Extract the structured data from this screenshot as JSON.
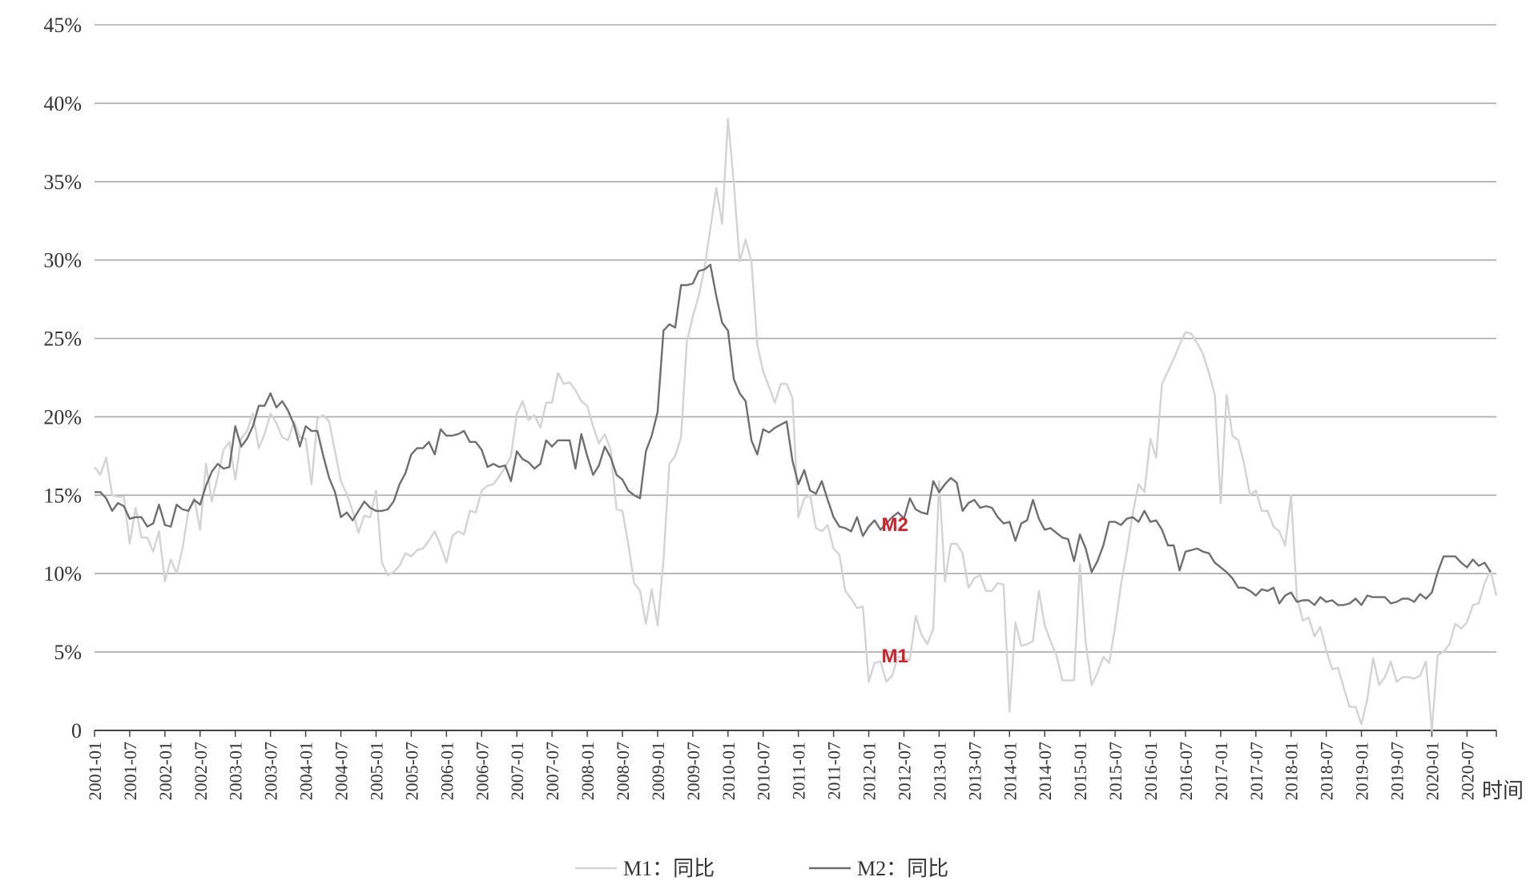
{
  "chart_data": {
    "type": "line",
    "title": "",
    "xlabel": "时间",
    "ylabel": "",
    "ylim": [
      0,
      45
    ],
    "y_ticks": [
      "0",
      "5%",
      "10%",
      "15%",
      "20%",
      "25%",
      "30%",
      "35%",
      "40%",
      "45%"
    ],
    "y_tick_values": [
      0,
      5,
      10,
      15,
      20,
      25,
      30,
      35,
      40,
      45
    ],
    "x_tick_labels": [
      "2001-01",
      "2001-07",
      "2002-01",
      "2002-07",
      "2003-01",
      "2003-07",
      "2004-01",
      "2004-07",
      "2005-01",
      "2005-07",
      "2006-01",
      "2006-07",
      "2007-01",
      "2007-07",
      "2008-01",
      "2008-07",
      "2009-01",
      "2009-07",
      "2010-01",
      "2010-07",
      "2011-01",
      "2011-07",
      "2012-01",
      "2012-07",
      "2013-01",
      "2013-07",
      "2014-01",
      "2014-07",
      "2015-01",
      "2015-07",
      "2016-01",
      "2016-07",
      "2017-01",
      "2017-07",
      "2018-01",
      "2018-07",
      "2019-01",
      "2019-07",
      "2020-01",
      "2020-07"
    ],
    "x_start": "2001-01",
    "x_end": "2020-12",
    "grid": true,
    "legend_position": "bottom",
    "annotations": [
      {
        "text": "M2",
        "series": "M2：同比",
        "at": "2012-06",
        "color": "#d2202a"
      },
      {
        "text": "M1",
        "series": "M1：同比",
        "at": "2012-06",
        "color": "#d2202a"
      }
    ],
    "series": [
      {
        "name": "M1：同比",
        "color": "#d3d3d3",
        "values": [
          16.8,
          16.3,
          17.4,
          15.0,
          14.9,
          14.9,
          11.9,
          14.2,
          12.3,
          12.3,
          11.4,
          12.7,
          9.5,
          10.9,
          10.0,
          11.6,
          14.0,
          14.8,
          12.8,
          17.0,
          14.6,
          16.2,
          17.9,
          18.4,
          16.0,
          18.6,
          19.1,
          20.2,
          18.0,
          18.9,
          20.2,
          19.6,
          18.7,
          18.5,
          19.7,
          18.7,
          18.6,
          15.7,
          19.9,
          20.1,
          19.7,
          17.8,
          15.9,
          15.1,
          14.0,
          12.6,
          13.7,
          13.6,
          15.3,
          10.7,
          9.9,
          10.1,
          10.5,
          11.3,
          11.1,
          11.5,
          11.6,
          12.1,
          12.7,
          11.8,
          10.7,
          12.4,
          12.7,
          12.5,
          14.0,
          13.9,
          15.3,
          15.6,
          15.7,
          16.2,
          16.8,
          17.5,
          20.2,
          21.0,
          19.8,
          20.1,
          19.3,
          20.9,
          20.9,
          22.8,
          22.1,
          22.2,
          21.7,
          21.0,
          20.7,
          19.4,
          18.3,
          18.9,
          17.9,
          14.1,
          14.0,
          11.9,
          9.4,
          8.9,
          6.8,
          9.0,
          6.7,
          10.9,
          17.0,
          17.5,
          18.7,
          24.8,
          26.4,
          27.7,
          29.5,
          32.0,
          34.6,
          32.3,
          39.0,
          34.9,
          29.9,
          31.3,
          29.9,
          24.6,
          22.9,
          21.9,
          20.9,
          22.1,
          22.1,
          21.2,
          13.6,
          14.8,
          15.0,
          12.9,
          12.7,
          13.1,
          11.6,
          11.2,
          8.9,
          8.4,
          7.8,
          7.9,
          3.1,
          4.3,
          4.4,
          3.1,
          3.5,
          4.7,
          4.6,
          4.5,
          7.3,
          6.1,
          5.5,
          6.5,
          15.9,
          9.5,
          11.9,
          11.9,
          11.3,
          9.1,
          9.7,
          9.9,
          8.9,
          8.9,
          9.4,
          9.3,
          1.2,
          6.9,
          5.4,
          5.5,
          5.7,
          8.9,
          6.7,
          5.7,
          4.8,
          3.2,
          3.2,
          3.2,
          10.6,
          5.6,
          2.9,
          3.7,
          4.7,
          4.3,
          6.6,
          9.3,
          11.4,
          13.8,
          15.7,
          15.2,
          18.6,
          17.4,
          22.1,
          22.9,
          23.7,
          24.6,
          25.4,
          25.3,
          24.7,
          24.0,
          22.8,
          21.4,
          14.5,
          21.4,
          18.8,
          18.5,
          17.0,
          15.0,
          15.3,
          14.0,
          14.0,
          13.0,
          12.7,
          11.8,
          15.0,
          8.5,
          7.0,
          7.2,
          6.0,
          6.6,
          5.1,
          3.9,
          4.0,
          2.7,
          1.5,
          1.5,
          0.4,
          2.0,
          4.6,
          2.9,
          3.4,
          4.4,
          3.1,
          3.4,
          3.4,
          3.3,
          3.5,
          4.4,
          0.0,
          4.8,
          5.0,
          5.5,
          6.8,
          6.5,
          6.9,
          8.0,
          8.1,
          9.4,
          10.2,
          8.6
        ]
      },
      {
        "name": "M2：同比",
        "color": "#6e6e6e",
        "values": [
          15.2,
          15.2,
          14.8,
          14.0,
          14.5,
          14.3,
          13.5,
          13.6,
          13.6,
          13.0,
          13.2,
          14.4,
          13.1,
          13.0,
          14.4,
          14.1,
          14.0,
          14.7,
          14.4,
          15.6,
          16.5,
          17.0,
          16.7,
          16.8,
          19.4,
          18.1,
          18.6,
          19.4,
          20.7,
          20.7,
          21.5,
          20.6,
          21.0,
          20.4,
          19.5,
          18.1,
          19.4,
          19.1,
          19.1,
          17.5,
          16.1,
          15.2,
          13.6,
          13.9,
          13.4,
          14.0,
          14.6,
          14.2,
          14.0,
          14.0,
          14.1,
          14.6,
          15.7,
          16.4,
          17.6,
          18.0,
          18.0,
          18.4,
          17.6,
          19.2,
          18.8,
          18.8,
          18.9,
          19.1,
          18.4,
          18.4,
          17.9,
          16.8,
          17.0,
          16.8,
          16.9,
          15.9,
          17.8,
          17.3,
          17.1,
          16.7,
          17.0,
          18.5,
          18.1,
          18.5,
          18.5,
          18.5,
          16.7,
          18.9,
          17.5,
          16.3,
          16.9,
          18.1,
          17.4,
          16.3,
          16.0,
          15.3,
          15.0,
          14.8,
          17.8,
          18.8,
          20.3,
          25.5,
          25.9,
          25.7,
          28.4,
          28.4,
          28.5,
          29.3,
          29.4,
          29.7,
          27.7,
          26.0,
          25.5,
          22.4,
          21.5,
          21.0,
          18.5,
          17.6,
          19.2,
          19.0,
          19.3,
          19.5,
          19.7,
          17.2,
          15.7,
          16.6,
          15.3,
          15.1,
          15.9,
          14.7,
          13.6,
          13.0,
          12.9,
          12.7,
          13.6,
          12.4,
          13.0,
          13.4,
          12.8,
          13.2,
          13.6,
          13.9,
          13.5,
          14.8,
          14.1,
          13.9,
          13.8,
          15.9,
          15.2,
          15.7,
          16.1,
          15.8,
          14.0,
          14.5,
          14.7,
          14.2,
          14.3,
          14.2,
          13.6,
          13.2,
          13.3,
          12.1,
          13.2,
          13.4,
          14.7,
          13.5,
          12.8,
          12.9,
          12.6,
          12.3,
          12.2,
          10.8,
          12.5,
          11.6,
          10.1,
          10.8,
          11.8,
          13.3,
          13.3,
          13.1,
          13.5,
          13.6,
          13.3,
          14.0,
          13.3,
          13.4,
          12.8,
          11.8,
          11.8,
          10.2,
          11.4,
          11.5,
          11.6,
          11.4,
          11.3,
          10.7,
          10.4,
          10.1,
          9.7,
          9.1,
          9.1,
          8.9,
          8.6,
          9.0,
          8.9,
          9.1,
          8.1,
          8.6,
          8.8,
          8.2,
          8.3,
          8.3,
          8.0,
          8.5,
          8.2,
          8.3,
          8.0,
          8.0,
          8.1,
          8.4,
          8.0,
          8.6,
          8.5,
          8.5,
          8.5,
          8.1,
          8.2,
          8.4,
          8.4,
          8.2,
          8.7,
          8.4,
          8.8,
          10.1,
          11.1,
          11.1,
          11.1,
          10.7,
          10.4,
          10.9,
          10.5,
          10.7,
          10.1
        ]
      }
    ]
  }
}
